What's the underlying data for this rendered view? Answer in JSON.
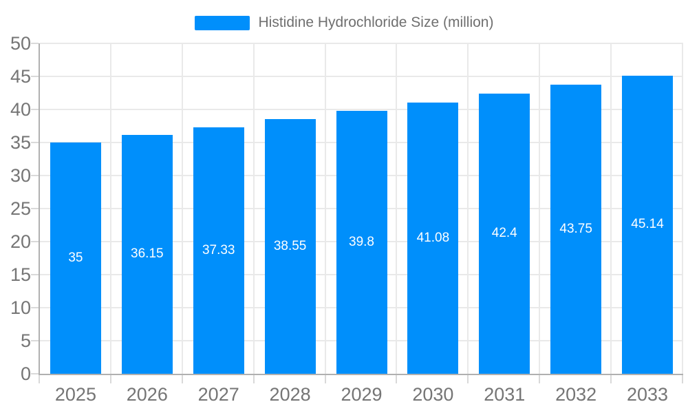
{
  "chart_data": {
    "type": "bar",
    "title": "Histidine Hydrochloride Size (million)",
    "legend_label": "Histidine Hydrochloride Size (million)",
    "legend_position": "top",
    "categories": [
      "2025",
      "2026",
      "2027",
      "2028",
      "2029",
      "2030",
      "2031",
      "2032",
      "2033"
    ],
    "series": [
      {
        "name": "Histidine Hydrochloride Size (million)",
        "values": [
          35,
          36.15,
          37.33,
          38.55,
          39.8,
          41.08,
          42.4,
          43.75,
          45.14
        ]
      }
    ],
    "values": [
      35,
      36.15,
      37.33,
      38.55,
      39.8,
      41.08,
      42.4,
      43.75,
      45.14
    ],
    "value_labels": [
      "35",
      "36.15",
      "37.33",
      "38.55",
      "39.8",
      "41.08",
      "42.4",
      "43.75",
      "45.14"
    ],
    "xlabel": "",
    "ylabel": "",
    "ylim": [
      0,
      50
    ],
    "ytick_step": 5,
    "grid": true,
    "colors": {
      "bar": "#008ffb",
      "axis_label": "#757575",
      "legend_text": "#6f6f6f",
      "grid_line": "#e9e9e9",
      "axis_line": "#b0b0b0",
      "tick": "#d9d9d9",
      "value_label": "#ffffff",
      "background": "#ffffff"
    }
  }
}
